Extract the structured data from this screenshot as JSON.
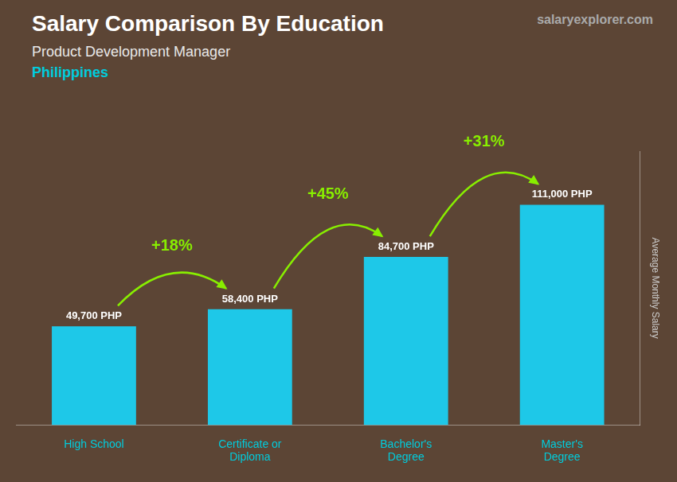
{
  "chart_data": {
    "type": "bar",
    "title": "Salary Comparison By Education",
    "subtitle": "Product Development Manager",
    "country": "Philippines",
    "source": "salaryexplorer.com",
    "ylabel": "Average Monthly Salary",
    "categories": [
      "High School",
      "Certificate or\nDiploma",
      "Bachelor's\nDegree",
      "Master's\nDegree"
    ],
    "values": [
      49700,
      58400,
      84700,
      111000
    ],
    "value_labels": [
      "49,700 PHP",
      "58,400 PHP",
      "84,700 PHP",
      "111,000 PHP"
    ],
    "data_labels": true,
    "annotations": [
      "+18%",
      "+45%",
      "+31%"
    ],
    "color": "#1ec8e8",
    "ylim": [
      0,
      138000
    ],
    "grid": false,
    "tick_labels": "x"
  }
}
